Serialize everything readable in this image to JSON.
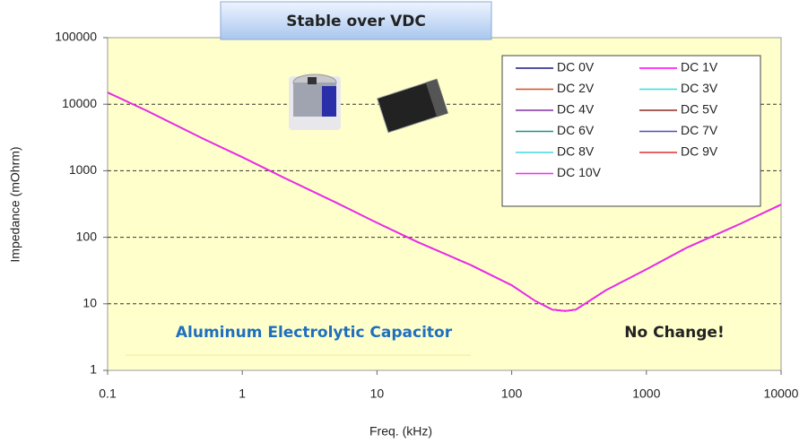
{
  "chart_data": {
    "type": "line",
    "x_label": "Freq. (kHz)",
    "y_label": "Impedance (mOhrm)",
    "annotations": [
      "Stable over VDC",
      "Aluminum Electrolytic Capacitor",
      "No Change!"
    ],
    "xscale": "log",
    "yscale": "log",
    "xlim": [
      0.1,
      10000
    ],
    "ylim": [
      1,
      100000
    ],
    "xticks": [
      0.1,
      1,
      10,
      100,
      1000,
      10000
    ],
    "yticks": [
      1,
      10,
      100,
      1000,
      10000,
      100000
    ],
    "grid": true,
    "legend": "upper right",
    "x": [
      0.1,
      0.2,
      0.5,
      1,
      2,
      5,
      10,
      20,
      50,
      100,
      150,
      200,
      250,
      300,
      500,
      1000,
      2000,
      5000,
      10000
    ],
    "series": [
      {
        "name": "DC 0V",
        "color": "#1a1a80",
        "values": [
          15000,
          7800,
          3100,
          1600,
          800,
          330,
          165,
          85,
          38,
          19,
          11,
          8.2,
          7.8,
          8.2,
          16,
          33,
          70,
          160,
          310
        ]
      },
      {
        "name": "DC 1V",
        "color": "#ff00ff",
        "values": [
          15000,
          7800,
          3100,
          1600,
          800,
          330,
          165,
          85,
          38,
          19,
          11,
          8.2,
          7.8,
          8.2,
          16,
          33,
          70,
          160,
          310
        ]
      },
      {
        "name": "DC 2V",
        "color": "#d05020",
        "values": [
          15000,
          7800,
          3100,
          1600,
          800,
          330,
          165,
          85,
          38,
          19,
          11,
          8.2,
          7.8,
          8.2,
          16,
          33,
          70,
          160,
          310
        ]
      },
      {
        "name": "DC 3V",
        "color": "#33e0e0",
        "values": [
          15000,
          7800,
          3100,
          1600,
          800,
          330,
          165,
          85,
          38,
          19,
          11,
          8.2,
          7.8,
          8.2,
          16,
          33,
          70,
          160,
          310
        ]
      },
      {
        "name": "DC 4V",
        "color": "#8030a0",
        "values": [
          15000,
          7800,
          3100,
          1600,
          800,
          330,
          165,
          85,
          38,
          19,
          11,
          8.2,
          7.8,
          8.2,
          16,
          33,
          70,
          160,
          310
        ]
      },
      {
        "name": "DC 5V",
        "color": "#8b2a20",
        "values": [
          15000,
          7800,
          3100,
          1600,
          800,
          330,
          165,
          85,
          38,
          19,
          11,
          8.2,
          7.8,
          8.2,
          16,
          33,
          70,
          160,
          310
        ]
      },
      {
        "name": "DC 6V",
        "color": "#209090",
        "values": [
          15000,
          7800,
          3100,
          1600,
          800,
          330,
          165,
          85,
          38,
          19,
          11,
          8.2,
          7.8,
          8.2,
          16,
          33,
          70,
          160,
          310
        ]
      },
      {
        "name": "DC 7V",
        "color": "#5050b0",
        "values": [
          15000,
          7800,
          3100,
          1600,
          800,
          330,
          165,
          85,
          38,
          19,
          11,
          8.2,
          7.8,
          8.2,
          16,
          33,
          70,
          160,
          310
        ]
      },
      {
        "name": "DC 8V",
        "color": "#40d8e0",
        "values": [
          15000,
          7800,
          3100,
          1600,
          800,
          330,
          165,
          85,
          38,
          19,
          11,
          8.2,
          7.8,
          8.2,
          16,
          33,
          70,
          160,
          310
        ]
      },
      {
        "name": "DC 9V",
        "color": "#e03030",
        "values": [
          15000,
          7800,
          3100,
          1600,
          800,
          330,
          165,
          85,
          38,
          19,
          11,
          8.2,
          7.8,
          8.2,
          16,
          33,
          70,
          160,
          310
        ]
      },
      {
        "name": "DC 10V",
        "color": "#ff20ff",
        "values": [
          15000,
          7800,
          3100,
          1600,
          800,
          330,
          165,
          85,
          38,
          19,
          11,
          8.2,
          7.8,
          8.2,
          16,
          33,
          70,
          160,
          310
        ]
      }
    ]
  }
}
